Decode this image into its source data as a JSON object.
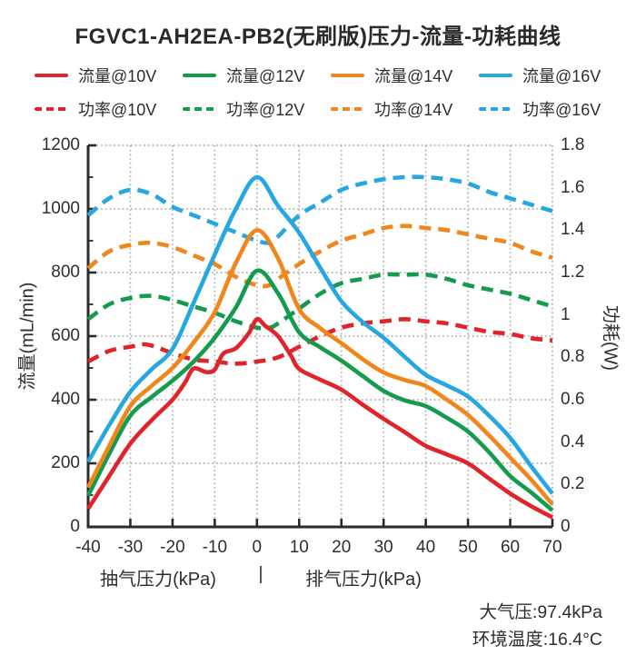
{
  "title": "FGVC1-AH2EA-PB2(无刷版)压力-流量-功耗曲线",
  "colors": {
    "red": "#E0242B",
    "green": "#149B4D",
    "orange": "#F0861C",
    "blue": "#27A7E0",
    "grid": "#B3B3B3",
    "axis": "#2B2B2B",
    "text": "#2E2E2E"
  },
  "legend": {
    "items": [
      {
        "label": "流量@10V",
        "color": "#E0242B",
        "style": "solid"
      },
      {
        "label": "流量@12V",
        "color": "#149B4D",
        "style": "solid"
      },
      {
        "label": "流量@14V",
        "color": "#F0861C",
        "style": "solid"
      },
      {
        "label": "流量@16V",
        "color": "#27A7E0",
        "style": "solid"
      },
      {
        "label": "功率@10V",
        "color": "#E0242B",
        "style": "dashed"
      },
      {
        "label": "功率@12V",
        "color": "#149B4D",
        "style": "dashed"
      },
      {
        "label": "功率@14V",
        "color": "#F0861C",
        "style": "dashed"
      },
      {
        "label": "功率@16V",
        "color": "#27A7E0",
        "style": "dashed"
      }
    ]
  },
  "footnote": {
    "line1": "大气压:97.4kPa",
    "line2": "环境温度:16.4°C"
  },
  "chart_data": {
    "type": "line",
    "x_axis": {
      "label_left": "抽气压力(kPa)",
      "separator": "|",
      "label_right": "排气压力(kPa)",
      "min": -40,
      "max": 70,
      "ticks": [
        -40,
        -30,
        -20,
        -10,
        0,
        10,
        20,
        30,
        40,
        50,
        60,
        70
      ]
    },
    "y_left": {
      "label": "流量(mL/min)",
      "min": 0,
      "max": 1200,
      "ticks": [
        0,
        200,
        400,
        600,
        800,
        1000,
        1200
      ],
      "minor_step": 100
    },
    "y_right": {
      "label": "功耗(W)",
      "min": 0,
      "max": 1.8,
      "ticks": [
        0,
        0.2,
        0.4,
        0.6,
        0.8,
        1,
        1.2,
        1.4,
        1.6,
        1.8
      ]
    },
    "grid": {
      "vertical_every_kpa": 10,
      "horizontal_every_flow": 200,
      "style": "dotted"
    },
    "legend_position": "top",
    "series": [
      {
        "id": "power-16v",
        "name": "功率@16V",
        "axis": "right",
        "style": "dashed",
        "color": "#27A7E0",
        "points": [
          [
            -40,
            1.47
          ],
          [
            -35,
            1.55
          ],
          [
            -30,
            1.59
          ],
          [
            -25,
            1.57
          ],
          [
            -20,
            1.51
          ],
          [
            -15,
            1.47
          ],
          [
            -10,
            1.43
          ],
          [
            -5,
            1.39
          ],
          [
            0,
            1.35
          ],
          [
            3,
            1.34
          ],
          [
            5,
            1.37
          ],
          [
            10,
            1.47
          ],
          [
            15,
            1.53
          ],
          [
            20,
            1.59
          ],
          [
            25,
            1.62
          ],
          [
            30,
            1.64
          ],
          [
            35,
            1.65
          ],
          [
            40,
            1.65
          ],
          [
            45,
            1.64
          ],
          [
            50,
            1.62
          ],
          [
            55,
            1.58
          ],
          [
            60,
            1.55
          ],
          [
            65,
            1.52
          ],
          [
            70,
            1.49
          ]
        ]
      },
      {
        "id": "power-14v",
        "name": "功率@14V",
        "axis": "right",
        "style": "dashed",
        "color": "#F0861C",
        "points": [
          [
            -40,
            1.22
          ],
          [
            -35,
            1.3
          ],
          [
            -30,
            1.33
          ],
          [
            -25,
            1.34
          ],
          [
            -20,
            1.32
          ],
          [
            -15,
            1.28
          ],
          [
            -10,
            1.24
          ],
          [
            -5,
            1.18
          ],
          [
            0,
            1.14
          ],
          [
            3,
            1.14
          ],
          [
            5,
            1.17
          ],
          [
            10,
            1.24
          ],
          [
            15,
            1.3
          ],
          [
            20,
            1.35
          ],
          [
            25,
            1.38
          ],
          [
            30,
            1.41
          ],
          [
            35,
            1.42
          ],
          [
            40,
            1.41
          ],
          [
            45,
            1.4
          ],
          [
            50,
            1.38
          ],
          [
            55,
            1.36
          ],
          [
            60,
            1.34
          ],
          [
            65,
            1.3
          ],
          [
            70,
            1.27
          ]
        ]
      },
      {
        "id": "power-12v",
        "name": "功率@12V",
        "axis": "right",
        "style": "dashed",
        "color": "#149B4D",
        "points": [
          [
            -40,
            0.98
          ],
          [
            -35,
            1.05
          ],
          [
            -30,
            1.08
          ],
          [
            -25,
            1.09
          ],
          [
            -20,
            1.07
          ],
          [
            -15,
            1.04
          ],
          [
            -10,
            1.01
          ],
          [
            -5,
            0.97
          ],
          [
            0,
            0.94
          ],
          [
            3,
            0.94
          ],
          [
            5,
            0.96
          ],
          [
            10,
            1.03
          ],
          [
            15,
            1.1
          ],
          [
            20,
            1.15
          ],
          [
            25,
            1.17
          ],
          [
            30,
            1.19
          ],
          [
            35,
            1.19
          ],
          [
            40,
            1.19
          ],
          [
            45,
            1.17
          ],
          [
            50,
            1.14
          ],
          [
            55,
            1.12
          ],
          [
            60,
            1.1
          ],
          [
            65,
            1.07
          ],
          [
            70,
            1.04
          ]
        ]
      },
      {
        "id": "power-10v",
        "name": "功率@10V",
        "axis": "right",
        "style": "dashed",
        "color": "#E0242B",
        "points": [
          [
            -40,
            0.78
          ],
          [
            -35,
            0.83
          ],
          [
            -30,
            0.85
          ],
          [
            -26,
            0.86
          ],
          [
            -20,
            0.82
          ],
          [
            -15,
            0.79
          ],
          [
            -10,
            0.78
          ],
          [
            -5,
            0.77
          ],
          [
            0,
            0.78
          ],
          [
            5,
            0.8
          ],
          [
            10,
            0.85
          ],
          [
            15,
            0.9
          ],
          [
            20,
            0.94
          ],
          [
            25,
            0.96
          ],
          [
            30,
            0.97
          ],
          [
            35,
            0.98
          ],
          [
            40,
            0.97
          ],
          [
            45,
            0.96
          ],
          [
            50,
            0.94
          ],
          [
            55,
            0.92
          ],
          [
            60,
            0.91
          ],
          [
            65,
            0.89
          ],
          [
            70,
            0.88
          ]
        ]
      },
      {
        "id": "flow-10v",
        "name": "流量@10V",
        "axis": "left",
        "style": "solid",
        "color": "#E0242B",
        "points": [
          [
            -40,
            57
          ],
          [
            -35,
            160
          ],
          [
            -30,
            262
          ],
          [
            -25,
            335
          ],
          [
            -20,
            400
          ],
          [
            -17,
            455
          ],
          [
            -15,
            498
          ],
          [
            -12,
            487
          ],
          [
            -10,
            495
          ],
          [
            -8,
            545
          ],
          [
            -5,
            562
          ],
          [
            -2,
            608
          ],
          [
            0,
            653
          ],
          [
            2,
            632
          ],
          [
            5,
            600
          ],
          [
            8,
            540
          ],
          [
            10,
            497
          ],
          [
            15,
            463
          ],
          [
            20,
            432
          ],
          [
            25,
            385
          ],
          [
            30,
            340
          ],
          [
            35,
            298
          ],
          [
            40,
            255
          ],
          [
            45,
            228
          ],
          [
            50,
            200
          ],
          [
            55,
            152
          ],
          [
            60,
            105
          ],
          [
            65,
            65
          ],
          [
            70,
            30
          ]
        ]
      },
      {
        "id": "flow-12v",
        "name": "流量@12V",
        "axis": "left",
        "style": "solid",
        "color": "#149B4D",
        "points": [
          [
            -40,
            98
          ],
          [
            -35,
            230
          ],
          [
            -30,
            350
          ],
          [
            -25,
            408
          ],
          [
            -20,
            460
          ],
          [
            -15,
            520
          ],
          [
            -10,
            595
          ],
          [
            -5,
            690
          ],
          [
            0,
            806
          ],
          [
            5,
            735
          ],
          [
            10,
            612
          ],
          [
            15,
            565
          ],
          [
            20,
            523
          ],
          [
            25,
            475
          ],
          [
            30,
            428
          ],
          [
            35,
            398
          ],
          [
            40,
            380
          ],
          [
            45,
            343
          ],
          [
            50,
            300
          ],
          [
            55,
            235
          ],
          [
            60,
            160
          ],
          [
            65,
            108
          ],
          [
            70,
            52
          ]
        ]
      },
      {
        "id": "flow-14v",
        "name": "流量@14V",
        "axis": "left",
        "style": "solid",
        "color": "#F0861C",
        "points": [
          [
            -40,
            124
          ],
          [
            -35,
            255
          ],
          [
            -30,
            380
          ],
          [
            -25,
            443
          ],
          [
            -20,
            500
          ],
          [
            -15,
            580
          ],
          [
            -10,
            676
          ],
          [
            -5,
            830
          ],
          [
            0,
            933
          ],
          [
            5,
            845
          ],
          [
            10,
            685
          ],
          [
            15,
            625
          ],
          [
            20,
            578
          ],
          [
            25,
            528
          ],
          [
            30,
            486
          ],
          [
            35,
            462
          ],
          [
            40,
            443
          ],
          [
            45,
            400
          ],
          [
            50,
            352
          ],
          [
            55,
            288
          ],
          [
            60,
            218
          ],
          [
            65,
            148
          ],
          [
            70,
            71
          ]
        ]
      },
      {
        "id": "flow-16v",
        "name": "流量@16V",
        "axis": "left",
        "style": "solid",
        "color": "#27A7E0",
        "points": [
          [
            -40,
            205
          ],
          [
            -35,
            320
          ],
          [
            -30,
            425
          ],
          [
            -25,
            495
          ],
          [
            -20,
            560
          ],
          [
            -15,
            705
          ],
          [
            -10,
            857
          ],
          [
            -5,
            1000
          ],
          [
            0,
            1100
          ],
          [
            5,
            1010
          ],
          [
            10,
            925
          ],
          [
            15,
            815
          ],
          [
            20,
            710
          ],
          [
            25,
            645
          ],
          [
            30,
            595
          ],
          [
            35,
            535
          ],
          [
            40,
            478
          ],
          [
            45,
            445
          ],
          [
            50,
            410
          ],
          [
            55,
            350
          ],
          [
            60,
            280
          ],
          [
            65,
            190
          ],
          [
            70,
            105
          ]
        ]
      }
    ]
  }
}
